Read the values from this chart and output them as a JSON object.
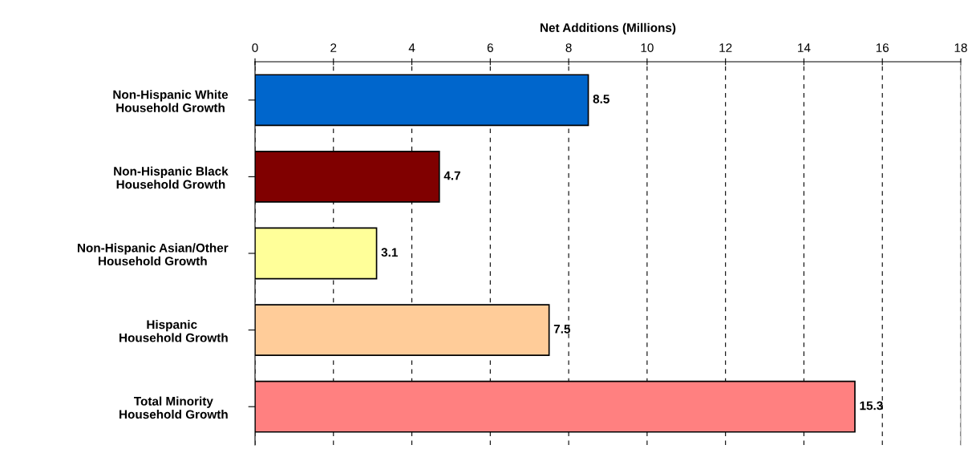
{
  "chart_data": {
    "type": "bar",
    "orientation": "horizontal",
    "xlabel": "Net Additions (Millions)",
    "categories": [
      "Non-Hispanic White\nHousehold Growth",
      "Non-Hispanic Black\nHousehold Growth",
      "Non-Hispanic Asian/Other\nHousehold Growth",
      "Hispanic\n Household Growth",
      "Total Minority\nHousehold Growth"
    ],
    "values": [
      8.5,
      4.7,
      3.1,
      7.5,
      15.3
    ],
    "colors": [
      "#0066cc",
      "#800000",
      "#ffff99",
      "#ffcc99",
      "#ff8080"
    ],
    "xlim": [
      0,
      18
    ],
    "xticks": [
      0,
      2,
      4,
      6,
      8,
      10,
      12,
      14,
      16,
      18
    ],
    "grid": "x",
    "data_labels": true
  }
}
